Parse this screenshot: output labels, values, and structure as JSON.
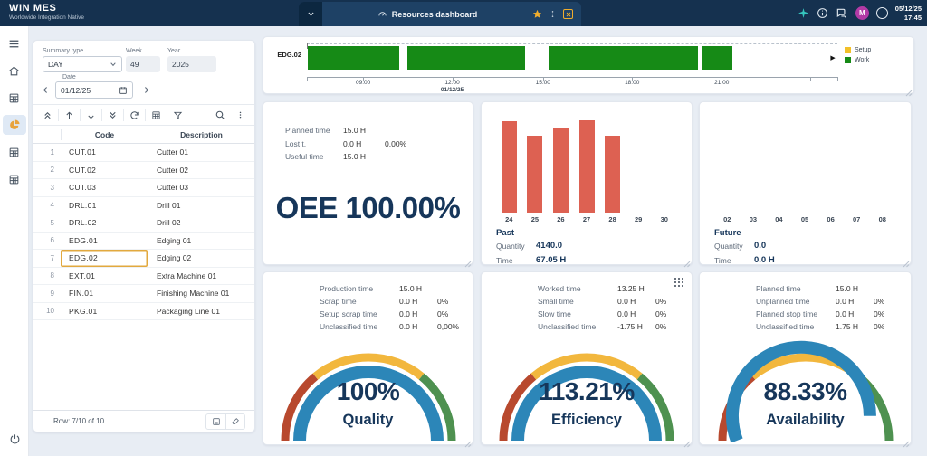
{
  "topbar": {
    "logo_title": "WIN MES",
    "logo_subtitle": "Worldwide Integration Native",
    "tab_title": "Resources dashboard",
    "date": "05/12/25",
    "time": "17:45",
    "avatar_initial": "M",
    "icons": [
      "chevron-down",
      "dashboard-gauge",
      "star",
      "kebab-menu",
      "close",
      "sparkle",
      "info",
      "chat",
      "avatar",
      "spinner"
    ]
  },
  "sidebar": {
    "icons": [
      "hamburger-menu",
      "home",
      "table-view-1",
      "dashboard-pie (active)",
      "table-view-2",
      "table-view-3",
      "power"
    ],
    "active_color": "#e8a33d"
  },
  "filters": {
    "summary_type": {
      "label": "Summary type",
      "value": "DAY"
    },
    "week": {
      "label": "Week",
      "value": "49"
    },
    "year": {
      "label": "Year",
      "value": "2025"
    },
    "date": {
      "label": "Date",
      "value": "01/12/25"
    }
  },
  "resource_table": {
    "columns": [
      "Code",
      "Description"
    ],
    "rows": [
      {
        "n": "1",
        "code": "CUT.01",
        "desc": "Cutter 01"
      },
      {
        "n": "2",
        "code": "CUT.02",
        "desc": "Cutter 02"
      },
      {
        "n": "3",
        "code": "CUT.03",
        "desc": "Cutter 03"
      },
      {
        "n": "4",
        "code": "DRL.01",
        "desc": "Drill 01"
      },
      {
        "n": "5",
        "code": "DRL.02",
        "desc": "Drill 02"
      },
      {
        "n": "6",
        "code": "EDG.01",
        "desc": "Edging 01"
      },
      {
        "n": "7",
        "code": "EDG.02",
        "desc": "Edging 02"
      },
      {
        "n": "8",
        "code": "EXT.01",
        "desc": "Extra Machine 01"
      },
      {
        "n": "9",
        "code": "FIN.01",
        "desc": "Finishing Machine 01"
      },
      {
        "n": "10",
        "code": "PKG.01",
        "desc": "Packaging Line 01"
      }
    ],
    "selected_index": 6,
    "footer": "Row: 7/10 of 10"
  },
  "gantt": {
    "row_label": "EDG.02",
    "axis_date": "01/12/25",
    "bar_color": "#168a16",
    "ticks": [
      {
        "label": "09:00",
        "pos": 10.6
      },
      {
        "label": "12:00",
        "pos": 27.4,
        "date": true
      },
      {
        "label": "15:00",
        "pos": 44.5
      },
      {
        "label": "18:00",
        "pos": 61.3
      },
      {
        "label": "21:00",
        "pos": 78.2
      }
    ],
    "minor_ticks": [
      0,
      94.9,
      100
    ],
    "bars": [
      {
        "start": 0.2,
        "width": 17.2
      },
      {
        "start": 18.9,
        "width": 22.3
      },
      {
        "start": 45.5,
        "width": 28.3
      },
      {
        "start": 74.6,
        "width": 5.6
      }
    ],
    "legend": [
      {
        "label": "Setup",
        "color": "#f2c029"
      },
      {
        "label": "Work",
        "color": "#168a16"
      }
    ]
  },
  "oee": {
    "stats": [
      {
        "label": "Planned time",
        "value": "15.0 H",
        "pct": ""
      },
      {
        "label": "Lost t.",
        "value": "0.0 H",
        "pct": "0.00%"
      },
      {
        "label": "Useful time",
        "value": "15.0 H",
        "pct": ""
      }
    ],
    "headline": "OEE 100.00%"
  },
  "past": {
    "title": "Past",
    "quantity_label": "Quantity",
    "quantity_value": "4140.0",
    "time_label": "Time",
    "time_value": "67.05 H",
    "bar_color": "#dd6152",
    "categories": [
      "24",
      "25",
      "26",
      "27",
      "28",
      "29",
      "30"
    ],
    "values": [
      99,
      83,
      91,
      100,
      83,
      0,
      0
    ]
  },
  "future": {
    "title": "Future",
    "quantity_label": "Quantity",
    "quantity_value": "0.0",
    "time_label": "Time",
    "time_value": "0.0 H",
    "bar_color": "#dd6152",
    "categories": [
      "02",
      "03",
      "04",
      "05",
      "06",
      "07",
      "08"
    ],
    "values": [
      0,
      0,
      0,
      0,
      0,
      0,
      0
    ]
  },
  "gauge_style": {
    "value_color": "#2c86b8",
    "zones": [
      {
        "from": 0,
        "to": 28,
        "color": "#b8492e"
      },
      {
        "from": 28,
        "to": 72,
        "color": "#f2b73d"
      },
      {
        "from": 72,
        "to": 100,
        "color": "#4e9150"
      }
    ]
  },
  "gauges": [
    {
      "name": "Quality",
      "value": 100,
      "value_text": "100%",
      "stats": [
        {
          "label": "Production time",
          "value": "15.0 H",
          "pct": ""
        },
        {
          "label": "Scrap time",
          "value": "0.0 H",
          "pct": "0%"
        },
        {
          "label": "Setup scrap time",
          "value": "0.0 H",
          "pct": "0%"
        },
        {
          "label": "Unclassified time",
          "value": "0.0 H",
          "pct": "0,00%"
        }
      ]
    },
    {
      "name": "Efficiency",
      "value": 113.21,
      "value_text": "113.21%",
      "drag_handle": true,
      "stats": [
        {
          "label": "Worked time",
          "value": "13.25 H",
          "pct": ""
        },
        {
          "label": "Small time",
          "value": "0.0 H",
          "pct": "0%"
        },
        {
          "label": "Slow time",
          "value": "0.0 H",
          "pct": "0%"
        },
        {
          "label": "Unclassified time",
          "value": "-1.75 H",
          "pct": "0%"
        }
      ]
    },
    {
      "name": "Availability",
      "value": 88.33,
      "value_text": "88.33%",
      "stats": [
        {
          "label": "Planned time",
          "value": "15.0 H",
          "pct": ""
        },
        {
          "label": "Unplanned time",
          "value": "0.0 H",
          "pct": "0%"
        },
        {
          "label": "Planned stop time",
          "value": "0.0 H",
          "pct": "0%"
        },
        {
          "label": "Unclassified time",
          "value": "1.75 H",
          "pct": "0%"
        }
      ]
    }
  ]
}
